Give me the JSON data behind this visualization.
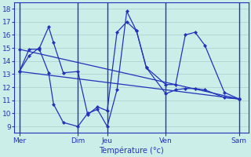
{
  "xlabel": "Température (°c)",
  "bg_color": "#cceee8",
  "line_color": "#2233bb",
  "grid_color": "#aacccc",
  "ylim": [
    8.5,
    18.5
  ],
  "xlim": [
    0,
    48
  ],
  "yticks": [
    9,
    10,
    11,
    12,
    13,
    14,
    15,
    16,
    17,
    18
  ],
  "xtick_positions": [
    1,
    13,
    19,
    31,
    46
  ],
  "xtick_labels": [
    "Mer",
    "Dim",
    "Jeu",
    "Ven",
    "Sam"
  ],
  "vlines": [
    1,
    13,
    19,
    31,
    46
  ],
  "series": [
    {
      "x": [
        1,
        3,
        5,
        7,
        8,
        10,
        13,
        15,
        17,
        19,
        21,
        23,
        25,
        27,
        31,
        33,
        35,
        37,
        39,
        43,
        46
      ],
      "y": [
        13.2,
        14.4,
        15.0,
        13.1,
        10.7,
        9.3,
        9.0,
        10.0,
        10.3,
        9.0,
        11.8,
        17.8,
        16.3,
        13.5,
        11.5,
        11.8,
        11.9,
        11.9,
        11.8,
        11.2,
        11.1
      ]
    },
    {
      "x": [
        1,
        3,
        5,
        7,
        8,
        10,
        13,
        15,
        17,
        19,
        21,
        23,
        25,
        27,
        31,
        33,
        35,
        37,
        39,
        43,
        46
      ],
      "y": [
        13.2,
        14.9,
        14.9,
        16.6,
        15.4,
        13.1,
        13.2,
        9.9,
        10.5,
        10.2,
        16.2,
        17.0,
        16.3,
        13.5,
        12.2,
        12.2,
        16.0,
        16.2,
        15.2,
        11.6,
        11.1
      ]
    },
    {
      "x": [
        1,
        46
      ],
      "y": [
        14.9,
        11.1
      ]
    },
    {
      "x": [
        1,
        46
      ],
      "y": [
        13.2,
        11.1
      ]
    }
  ]
}
